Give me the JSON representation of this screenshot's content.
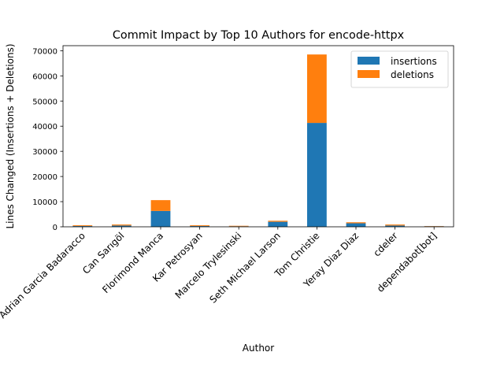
{
  "chart_data": {
    "type": "bar",
    "stacked": true,
    "title": "Commit Impact by Top 10 Authors for encode-httpx",
    "xlabel": "Author",
    "ylabel": "Lines Changed (Insertions + Deletions)",
    "ylim": [
      0,
      72000
    ],
    "yticks": [
      0,
      10000,
      20000,
      30000,
      40000,
      50000,
      60000,
      70000
    ],
    "ytick_labels": [
      "0",
      "10000",
      "20000",
      "30000",
      "40000",
      "50000",
      "60000",
      "70000"
    ],
    "grid": false,
    "legend_position": "top-right",
    "categories": [
      "Adrian Garcia Badaracco",
      "Can Sarıgöl",
      "Florimond Manca",
      "Kar Petrosyan",
      "Marcelo Trylesinski",
      "Seth Michael Larson",
      "Tom Christie",
      "Yeray Diaz Diaz",
      "cdeler",
      "dependabot[bot]"
    ],
    "series": [
      {
        "name": "insertions",
        "color": "#1f77b4",
        "values": [
          300,
          500,
          6300,
          300,
          200,
          2000,
          41300,
          1400,
          500,
          200
        ]
      },
      {
        "name": "deletions",
        "color": "#ff7f0e",
        "values": [
          300,
          400,
          4300,
          300,
          200,
          400,
          27200,
          400,
          400,
          100
        ]
      }
    ]
  }
}
